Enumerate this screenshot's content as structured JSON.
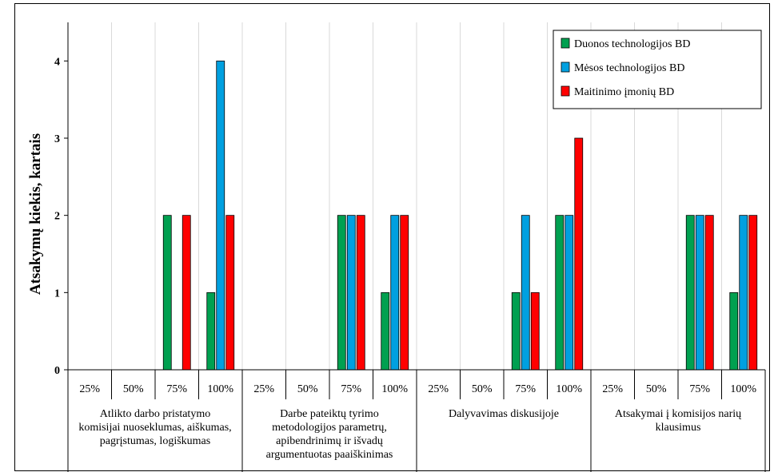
{
  "chart_data": {
    "type": "bar",
    "ylabel": "Atsakymų  kiekis,  kartais",
    "ylim": [
      0,
      4.5
    ],
    "yticks": [
      "0",
      "1",
      "2",
      "3",
      "4"
    ],
    "grid": "vertical",
    "legend_position": "top-right",
    "subcategories": [
      "25%",
      "50%",
      "75%",
      "100%"
    ],
    "groups": [
      {
        "label": [
          "Atlikto darbo pristatymo",
          "komisijai nuoseklumas, aiškumas,",
          "pagrįstumas, logiškumas"
        ]
      },
      {
        "label": [
          "Darbe pateiktų tyrimo",
          "metodologijos parametrų,",
          "apibendrinimų ir išvadų",
          "argumentuotas paaiškinimas"
        ]
      },
      {
        "label": [
          "Dalyvavimas diskusijoje"
        ]
      },
      {
        "label": [
          "Atsakymai į komisijos narių",
          "klausimus"
        ]
      }
    ],
    "series": [
      {
        "name": "Duonos technologijos BD",
        "color": "#00a050",
        "values": [
          0,
          0,
          2,
          1,
          0,
          0,
          2,
          1,
          0,
          0,
          1,
          2,
          0,
          0,
          2,
          1
        ]
      },
      {
        "name": "Mėsos technologijos BD",
        "color": "#00a0e0",
        "values": [
          0,
          0,
          0,
          4,
          0,
          0,
          2,
          2,
          0,
          0,
          2,
          2,
          0,
          0,
          2,
          2
        ]
      },
      {
        "name": "Maitinimo įmonių BD",
        "color": "#ff0000",
        "values": [
          0,
          0,
          2,
          2,
          0,
          0,
          2,
          2,
          0,
          0,
          1,
          3,
          0,
          0,
          2,
          2
        ]
      }
    ]
  }
}
